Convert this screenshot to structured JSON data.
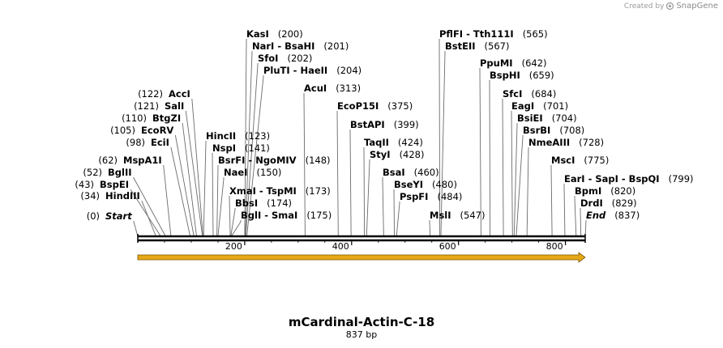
{
  "credit": {
    "text": "Created by",
    "brand": "SnapGene"
  },
  "title": "mCardinal-Actin-C-18",
  "subtitle": "837 bp",
  "ruler": {
    "total_bp": 837,
    "ticks": [
      200,
      400,
      600,
      800
    ]
  },
  "colors": {
    "arrow": "#e6a817",
    "arrow_edge": "#7a5200",
    "line": "#000000",
    "leader": "#6b6b6b"
  },
  "sites": [
    {
      "name": "Start",
      "pos": 0,
      "label_pos": "(0)",
      "italic": true
    },
    {
      "name": "HindIII",
      "pos": 34,
      "label_pos": "(34)"
    },
    {
      "name": "BspEI",
      "pos": 43,
      "label_pos": "(43)"
    },
    {
      "name": "BglII",
      "pos": 52,
      "label_pos": "(52)"
    },
    {
      "name": "MspA1I",
      "pos": 62,
      "label_pos": "(62)"
    },
    {
      "name": "EciI",
      "pos": 98,
      "label_pos": "(98)"
    },
    {
      "name": "EcoRV",
      "pos": 105,
      "label_pos": "(105)"
    },
    {
      "name": "BtgZI",
      "pos": 110,
      "label_pos": "(110)"
    },
    {
      "name": "SalI",
      "pos": 121,
      "label_pos": "(121)"
    },
    {
      "name": "AccI",
      "pos": 122,
      "label_pos": "(122)"
    },
    {
      "name": "HincII",
      "pos": 123,
      "label_pos": "(123)"
    },
    {
      "name": "NspI",
      "pos": 141,
      "label_pos": "(141)"
    },
    {
      "name": "BsrFI  -  NgoMIV",
      "pos": 148,
      "label_pos": "(148)"
    },
    {
      "name": "NaeI",
      "pos": 150,
      "label_pos": "(150)"
    },
    {
      "name": "XmaI  -  TspMI",
      "pos": 173,
      "label_pos": "(173)"
    },
    {
      "name": "BbsI",
      "pos": 174,
      "label_pos": "(174)"
    },
    {
      "name": "BglI  -  SmaI",
      "pos": 175,
      "label_pos": "(175)"
    },
    {
      "name": "KasI",
      "pos": 200,
      "label_pos": "(200)"
    },
    {
      "name": "NarI  -  BsaHI",
      "pos": 201,
      "label_pos": "(201)"
    },
    {
      "name": "SfoI",
      "pos": 202,
      "label_pos": "(202)"
    },
    {
      "name": "PluTI  -  HaeII",
      "pos": 204,
      "label_pos": "(204)"
    },
    {
      "name": "AcuI",
      "pos": 313,
      "label_pos": "(313)"
    },
    {
      "name": "EcoP15I",
      "pos": 375,
      "label_pos": "(375)"
    },
    {
      "name": "BstAPI",
      "pos": 399,
      "label_pos": "(399)"
    },
    {
      "name": "TaqII",
      "pos": 424,
      "label_pos": "(424)"
    },
    {
      "name": "StyI",
      "pos": 428,
      "label_pos": "(428)"
    },
    {
      "name": "BsaI",
      "pos": 460,
      "label_pos": "(460)"
    },
    {
      "name": "BseYI",
      "pos": 480,
      "label_pos": "(480)"
    },
    {
      "name": "PspFI",
      "pos": 484,
      "label_pos": "(484)"
    },
    {
      "name": "MslI",
      "pos": 547,
      "label_pos": "(547)"
    },
    {
      "name": "PflFI  -  Tth111I",
      "pos": 565,
      "label_pos": "(565)"
    },
    {
      "name": "BstEII",
      "pos": 567,
      "label_pos": "(567)"
    },
    {
      "name": "PpuMI",
      "pos": 642,
      "label_pos": "(642)"
    },
    {
      "name": "BspHI",
      "pos": 659,
      "label_pos": "(659)"
    },
    {
      "name": "SfcI",
      "pos": 684,
      "label_pos": "(684)"
    },
    {
      "name": "EagI",
      "pos": 701,
      "label_pos": "(701)"
    },
    {
      "name": "BsiEI",
      "pos": 704,
      "label_pos": "(704)"
    },
    {
      "name": "BsrBI",
      "pos": 708,
      "label_pos": "(708)"
    },
    {
      "name": "NmeAIII",
      "pos": 728,
      "label_pos": "(728)"
    },
    {
      "name": "MscI",
      "pos": 775,
      "label_pos": "(775)"
    },
    {
      "name": "EarI  -  SapI  -  BspQI",
      "pos": 799,
      "label_pos": "(799)"
    },
    {
      "name": "BpmI",
      "pos": 820,
      "label_pos": "(820)"
    },
    {
      "name": "DrdI",
      "pos": 829,
      "label_pos": "(829)"
    },
    {
      "name": "End",
      "pos": 837,
      "label_pos": "(837)",
      "italic": true
    }
  ]
}
